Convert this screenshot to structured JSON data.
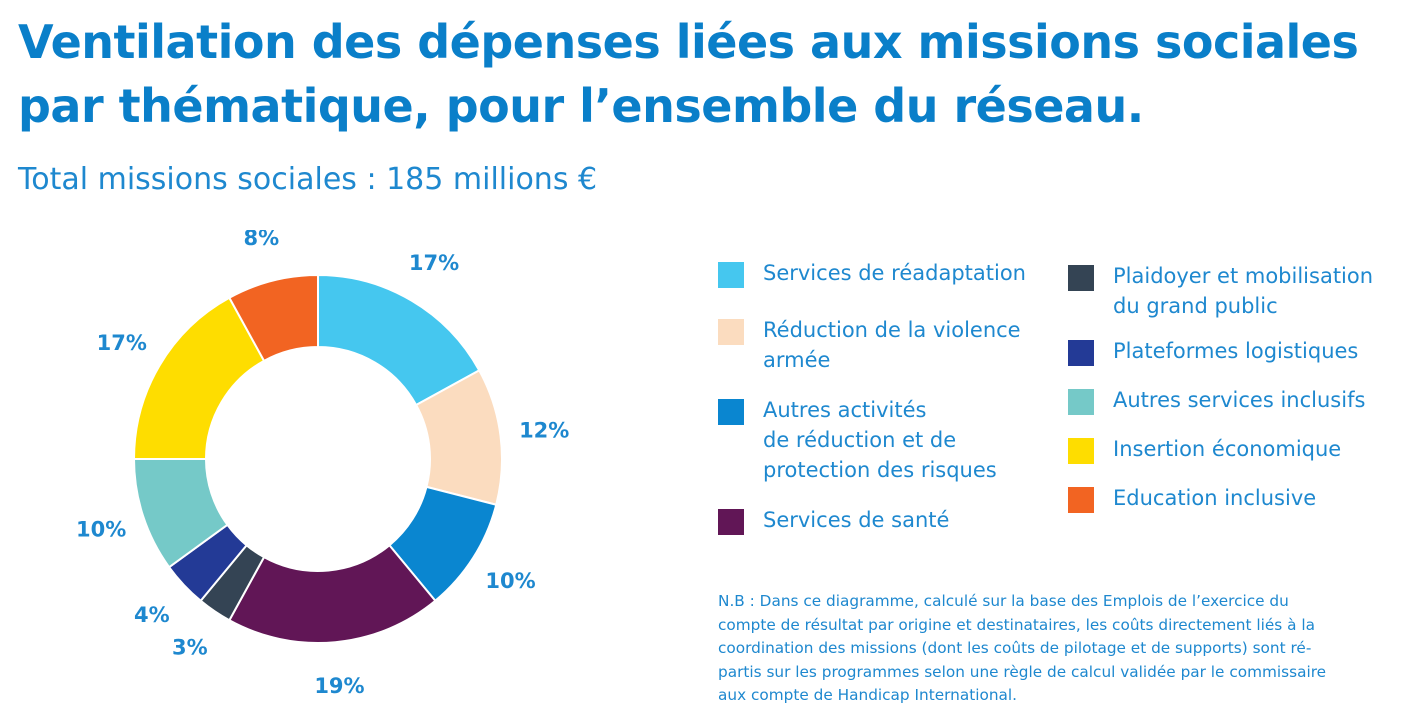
{
  "chart_data": {
    "type": "pie",
    "title": "Ventilation des dépenses liées aux missions sociales par thématique, pour l’ensemble du réseau.",
    "subtitle": "Total missions sociales : 185 millions €",
    "unit": "%",
    "slices": [
      {
        "name": "Services de réadaptation",
        "value": 17,
        "label": "17%",
        "color": "#45c7ef"
      },
      {
        "name": "Réduction de la violence armée",
        "value": 12,
        "label": "12%",
        "color": "#fbdcbf"
      },
      {
        "name": "Autres activités de réduction et de protection des risques",
        "value": 10,
        "label": "10%",
        "color": "#0a86d0"
      },
      {
        "name": "Services de santé",
        "value": 19,
        "label": "19%",
        "color": "#611656"
      },
      {
        "name": "Plaidoyer et mobilisation du grand public",
        "value": 3,
        "label": "3%",
        "color": "#344454"
      },
      {
        "name": "Plateformes logistiques",
        "value": 4,
        "label": "4%",
        "color": "#233a96"
      },
      {
        "name": "Autres services inclusifs",
        "value": 10,
        "label": "10%",
        "color": "#75c9c8"
      },
      {
        "name": "Insertion économique",
        "value": 17,
        "label": "17%",
        "color": "#fedd00"
      },
      {
        "name": "Education inclusive",
        "value": 8,
        "label": "8%",
        "color": "#f26422"
      }
    ],
    "legend": {
      "placement": "right",
      "column1": [
        {
          "label": "Services de réadaptation",
          "color": "#45c7ef"
        },
        {
          "label": "Réduction de la violence\narmée",
          "color": "#fbdcbf"
        },
        {
          "label": "Autres activités\nde réduction et de\nprotection des risques",
          "color": "#0a86d0"
        },
        {
          "label": "Services de santé",
          "color": "#611656"
        }
      ],
      "column2": [
        {
          "label": "Plaidoyer et mobilisation\ndu grand public",
          "color": "#344454"
        },
        {
          "label": "Plateformes logistiques",
          "color": "#233a96"
        },
        {
          "label": "Autres services inclusifs",
          "color": "#75c9c8"
        },
        {
          "label": "Insertion économique",
          "color": "#fedd00"
        },
        {
          "label": "Education inclusive",
          "color": "#f26422"
        }
      ]
    }
  },
  "note": "N.B : Dans ce diagramme, calculé sur la base des Emplois de l’exercice du\ncompte de résultat par origine et destinataires, les coûts directement liés à la\ncoordination des missions (dont les coûts de pilotage et de supports) sont ré-\npartis sur les programmes selon une règle de calcul validée par le commissaire\naux compte de Handicap International."
}
